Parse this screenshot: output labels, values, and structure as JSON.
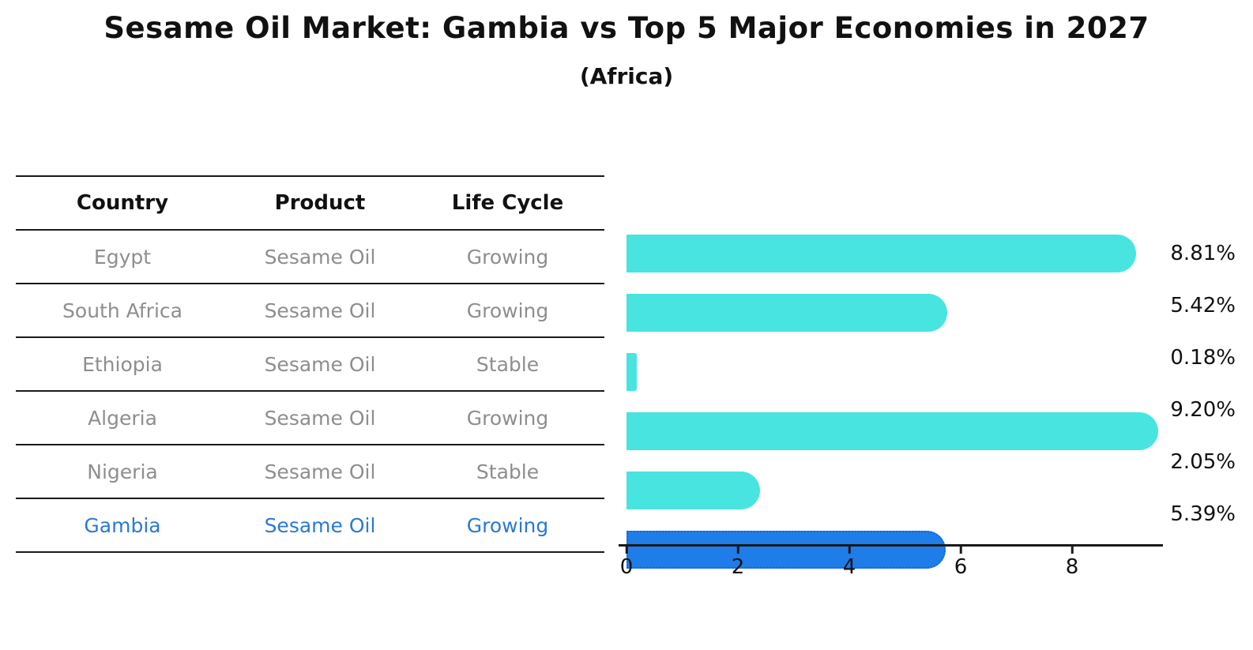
{
  "title": "Sesame Oil Market: Gambia vs Top 5 Major Economies in 2027",
  "subtitle": "(Africa)",
  "table": {
    "headers": [
      "Country",
      "Product",
      "Life Cycle"
    ],
    "rows": [
      {
        "country": "Egypt",
        "product": "Sesame Oil",
        "life_cycle": "Growing",
        "highlight": false
      },
      {
        "country": "South Africa",
        "product": "Sesame Oil",
        "life_cycle": "Growing",
        "highlight": false
      },
      {
        "country": "Ethiopia",
        "product": "Sesame Oil",
        "life_cycle": "Stable",
        "highlight": false
      },
      {
        "country": "Algeria",
        "product": "Sesame Oil",
        "life_cycle": "Growing",
        "highlight": false
      },
      {
        "country": "Nigeria",
        "product": "Sesame Oil",
        "life_cycle": "Stable",
        "highlight": false
      },
      {
        "country": "Gambia",
        "product": "Sesame Oil",
        "life_cycle": "Growing",
        "highlight": true
      }
    ]
  },
  "chart_data": {
    "type": "bar",
    "orientation": "horizontal",
    "title": "Sesame Oil Market: Gambia vs Top 5 Major Economies in 2027",
    "subtitle": "(Africa)",
    "categories": [
      "Egypt",
      "South Africa",
      "Ethiopia",
      "Algeria",
      "Nigeria",
      "Gambia"
    ],
    "values": [
      8.81,
      5.42,
      0.18,
      9.2,
      2.05,
      5.39
    ],
    "value_labels": [
      "8.81%",
      "5.42%",
      "0.18%",
      "9.20%",
      "2.05%",
      "5.39%"
    ],
    "x_tick_labels": [
      "0",
      "2",
      "4",
      "6",
      "8"
    ],
    "x_tick_values": [
      0,
      2,
      4,
      6,
      8
    ],
    "xlim": [
      0,
      9.66
    ],
    "grid": false,
    "legend": false,
    "bar_color": "#48e4e0",
    "highlight_bar_color": "#1e7de8",
    "highlight_border_color": "#1967cf",
    "highlighted_category": "Gambia"
  }
}
